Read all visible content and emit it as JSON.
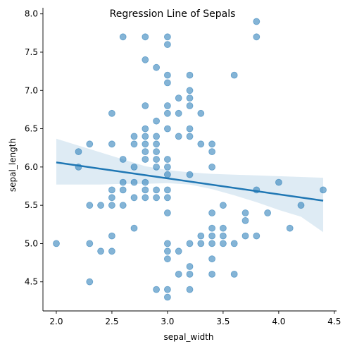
{
  "chart_data": {
    "type": "scatter",
    "title": "Regression Line of Sepals",
    "xlabel": "sepal_width",
    "ylabel": "sepal_length",
    "xlim": [
      1.88,
      4.52
    ],
    "ylim": [
      4.12,
      8.08
    ],
    "xticks": [
      2.0,
      2.5,
      3.0,
      3.5,
      4.0,
      4.5
    ],
    "xtick_labels": [
      "2.0",
      "2.5",
      "3.0",
      "3.5",
      "4.0",
      "4.5"
    ],
    "yticks": [
      4.5,
      5.0,
      5.5,
      6.0,
      6.5,
      7.0,
      7.5,
      8.0
    ],
    "ytick_labels": [
      "4.5",
      "5.0",
      "5.5",
      "6.0",
      "6.5",
      "7.0",
      "7.5",
      "8.0"
    ],
    "grid": false,
    "point_color": "#1f77b4",
    "line_color": "#1f77b4",
    "band_color": "#1f77b4",
    "points": [
      [
        2.0,
        5.0
      ],
      [
        2.2,
        6.2
      ],
      [
        2.2,
        6.0
      ],
      [
        2.3,
        6.3
      ],
      [
        2.3,
        5.5
      ],
      [
        2.3,
        5.0
      ],
      [
        2.3,
        4.5
      ],
      [
        2.4,
        5.5
      ],
      [
        2.4,
        4.9
      ],
      [
        2.5,
        6.7
      ],
      [
        2.5,
        6.3
      ],
      [
        2.5,
        5.7
      ],
      [
        2.5,
        5.6
      ],
      [
        2.5,
        5.5
      ],
      [
        2.5,
        5.1
      ],
      [
        2.5,
        4.9
      ],
      [
        2.6,
        7.7
      ],
      [
        2.6,
        6.1
      ],
      [
        2.6,
        5.8
      ],
      [
        2.6,
        5.7
      ],
      [
        2.6,
        5.5
      ],
      [
        2.7,
        6.4
      ],
      [
        2.7,
        6.3
      ],
      [
        2.7,
        6.0
      ],
      [
        2.7,
        5.8
      ],
      [
        2.7,
        5.6
      ],
      [
        2.7,
        5.2
      ],
      [
        2.8,
        7.7
      ],
      [
        2.8,
        7.4
      ],
      [
        2.8,
        6.8
      ],
      [
        2.8,
        6.5
      ],
      [
        2.8,
        6.4
      ],
      [
        2.8,
        6.3
      ],
      [
        2.8,
        6.2
      ],
      [
        2.8,
        6.1
      ],
      [
        2.8,
        5.8
      ],
      [
        2.8,
        5.7
      ],
      [
        2.8,
        5.6
      ],
      [
        2.9,
        7.3
      ],
      [
        2.9,
        6.6
      ],
      [
        2.9,
        6.4
      ],
      [
        2.9,
        6.3
      ],
      [
        2.9,
        6.2
      ],
      [
        2.9,
        6.1
      ],
      [
        2.9,
        6.0
      ],
      [
        2.9,
        5.7
      ],
      [
        2.9,
        5.6
      ],
      [
        2.9,
        4.4
      ],
      [
        3.0,
        7.7
      ],
      [
        3.0,
        7.6
      ],
      [
        3.0,
        7.2
      ],
      [
        3.0,
        7.1
      ],
      [
        3.0,
        6.8
      ],
      [
        3.0,
        6.7
      ],
      [
        3.0,
        6.5
      ],
      [
        3.0,
        6.1
      ],
      [
        3.0,
        6.0
      ],
      [
        3.0,
        5.9
      ],
      [
        3.0,
        5.7
      ],
      [
        3.0,
        5.6
      ],
      [
        3.0,
        5.4
      ],
      [
        3.0,
        5.0
      ],
      [
        3.0,
        4.9
      ],
      [
        3.0,
        4.8
      ],
      [
        3.0,
        4.4
      ],
      [
        3.0,
        4.3
      ],
      [
        3.1,
        6.9
      ],
      [
        3.1,
        6.7
      ],
      [
        3.1,
        6.4
      ],
      [
        3.1,
        4.9
      ],
      [
        3.1,
        4.6
      ],
      [
        3.2,
        7.2
      ],
      [
        3.2,
        7.0
      ],
      [
        3.2,
        6.9
      ],
      [
        3.2,
        6.8
      ],
      [
        3.2,
        6.5
      ],
      [
        3.2,
        6.4
      ],
      [
        3.2,
        5.9
      ],
      [
        3.2,
        5.0
      ],
      [
        3.2,
        4.7
      ],
      [
        3.2,
        4.6
      ],
      [
        3.2,
        4.4
      ],
      [
        3.3,
        6.7
      ],
      [
        3.3,
        6.3
      ],
      [
        3.3,
        5.1
      ],
      [
        3.3,
        5.0
      ],
      [
        3.4,
        6.3
      ],
      [
        3.4,
        6.2
      ],
      [
        3.4,
        6.0
      ],
      [
        3.4,
        5.4
      ],
      [
        3.4,
        5.2
      ],
      [
        3.4,
        5.1
      ],
      [
        3.4,
        5.0
      ],
      [
        3.4,
        4.8
      ],
      [
        3.4,
        4.6
      ],
      [
        3.5,
        5.5
      ],
      [
        3.5,
        5.2
      ],
      [
        3.5,
        5.1
      ],
      [
        3.5,
        5.0
      ],
      [
        3.6,
        7.2
      ],
      [
        3.6,
        5.0
      ],
      [
        3.6,
        4.6
      ],
      [
        3.7,
        5.4
      ],
      [
        3.7,
        5.3
      ],
      [
        3.7,
        5.1
      ],
      [
        3.8,
        7.9
      ],
      [
        3.8,
        7.7
      ],
      [
        3.8,
        5.7
      ],
      [
        3.8,
        5.1
      ],
      [
        3.9,
        5.4
      ],
      [
        4.0,
        5.8
      ],
      [
        4.1,
        5.2
      ],
      [
        4.2,
        5.5
      ],
      [
        4.4,
        5.7
      ]
    ],
    "regression": {
      "x": [
        2.0,
        4.4
      ],
      "y": [
        6.06,
        5.56
      ]
    },
    "confidence_band": {
      "x": [
        2.0,
        2.2,
        2.4,
        2.6,
        2.8,
        3.0,
        3.2,
        3.4,
        3.6,
        3.8,
        4.0,
        4.2,
        4.4
      ],
      "upper": [
        6.37,
        6.28,
        6.19,
        6.1,
        6.01,
        5.96,
        5.93,
        5.91,
        5.9,
        5.89,
        5.88,
        5.87,
        5.86
      ],
      "lower": [
        5.77,
        5.77,
        5.77,
        5.78,
        5.78,
        5.79,
        5.77,
        5.71,
        5.63,
        5.54,
        5.44,
        5.35,
        5.15
      ]
    }
  }
}
